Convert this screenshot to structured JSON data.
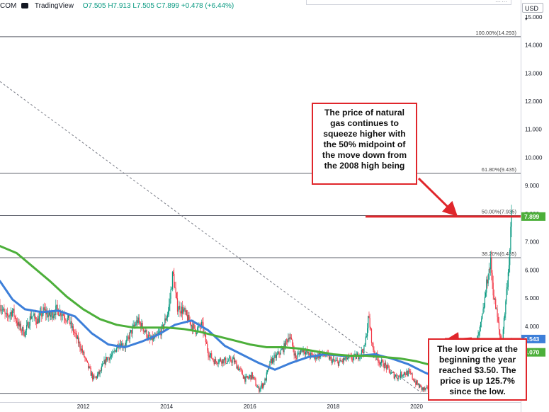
{
  "header": {
    "symbol_fragment": "COM",
    "platform": "TradingView",
    "open": "O7.505",
    "high": "H7.913",
    "low": "L7.505",
    "close": "C7.899",
    "change": "+0.478 (+6.44%)"
  },
  "currency_label": "USD",
  "callouts": {
    "top": "The price of natural gas continues to squeeze higher with the 50% midpoint of the move down from the 2008 high being",
    "bottom": "The low price at the beginning the year reached $3.50. The price is up 125.7% since the low."
  },
  "colors": {
    "candle_up": "#089981",
    "candle_down": "#f23645",
    "ma_blue": "#3d7fd9",
    "ma_green": "#4caf3a",
    "price_badge": "#4caf3a",
    "blue_badge": "#3d7fd9",
    "annotation_red": "#e0262b",
    "fib_line": "#5d606b",
    "trend_dash": "#787b86"
  },
  "chart_data": {
    "type": "candlestick",
    "x_axis": {
      "range": [
        2010.0,
        2022.5
      ],
      "ticks": [
        2012,
        2014,
        2016,
        2018,
        2020
      ],
      "tick_labels": [
        "2012",
        "2014",
        "2016",
        "2018",
        "2020"
      ]
    },
    "y_axis": {
      "range": [
        1.3,
        15.6
      ],
      "ticks": [
        4,
        5,
        6,
        7,
        8,
        9,
        10,
        11,
        12,
        13,
        14,
        15
      ],
      "tick_labels": [
        "4.000",
        "5.000",
        "6.000",
        "7.000",
        "8.000",
        "9.000",
        "10.000",
        "11.000",
        "12.000",
        "13.000",
        "14.000",
        "15.000"
      ]
    },
    "fib_levels": [
      {
        "label": "100.00%(14.293)",
        "value": 14.293
      },
      {
        "label": "61.80%(9.435)",
        "value": 9.435
      },
      {
        "label": "50.00%(7.935)",
        "value": 7.935
      },
      {
        "label": "38.20%(6.435)",
        "value": 6.435
      }
    ],
    "base_line_value": 1.61,
    "price_labels": [
      {
        "label": "7.899",
        "value": 7.899,
        "color": "#4caf3a"
      },
      {
        "label": "3.543",
        "value": 3.543,
        "color": "#3d7fd9"
      },
      {
        "label": "3.070",
        "value": 3.07,
        "color": "#4caf3a"
      }
    ],
    "price_path": [
      [
        2010.0,
        4.75
      ],
      [
        2010.15,
        4.3
      ],
      [
        2010.3,
        4.55
      ],
      [
        2010.45,
        4.0
      ],
      [
        2010.6,
        3.75
      ],
      [
        2010.75,
        4.4
      ],
      [
        2010.9,
        4.2
      ],
      [
        2011.05,
        4.55
      ],
      [
        2011.2,
        4.35
      ],
      [
        2011.35,
        4.6
      ],
      [
        2011.5,
        4.45
      ],
      [
        2011.65,
        4.2
      ],
      [
        2011.8,
        3.7
      ],
      [
        2011.95,
        3.2
      ],
      [
        2012.1,
        2.6
      ],
      [
        2012.25,
        2.1
      ],
      [
        2012.4,
        2.35
      ],
      [
        2012.55,
        2.85
      ],
      [
        2012.7,
        2.95
      ],
      [
        2012.85,
        3.4
      ],
      [
        2013.0,
        3.3
      ],
      [
        2013.15,
        3.8
      ],
      [
        2013.3,
        4.2
      ],
      [
        2013.45,
        3.9
      ],
      [
        2013.6,
        3.5
      ],
      [
        2013.75,
        3.6
      ],
      [
        2013.9,
        3.9
      ],
      [
        2014.05,
        4.6
      ],
      [
        2014.15,
        5.9
      ],
      [
        2014.25,
        4.7
      ],
      [
        2014.4,
        4.55
      ],
      [
        2014.55,
        4.15
      ],
      [
        2014.7,
        3.85
      ],
      [
        2014.85,
        4.05
      ],
      [
        2015.0,
        3.05
      ],
      [
        2015.15,
        2.75
      ],
      [
        2015.3,
        2.8
      ],
      [
        2015.45,
        2.75
      ],
      [
        2015.6,
        2.8
      ],
      [
        2015.75,
        2.45
      ],
      [
        2015.9,
        2.1
      ],
      [
        2016.05,
        2.25
      ],
      [
        2016.2,
        1.75
      ],
      [
        2016.35,
        2.0
      ],
      [
        2016.5,
        2.75
      ],
      [
        2016.65,
        2.95
      ],
      [
        2016.8,
        3.2
      ],
      [
        2016.95,
        3.7
      ],
      [
        2017.1,
        2.85
      ],
      [
        2017.25,
        3.2
      ],
      [
        2017.4,
        3.0
      ],
      [
        2017.55,
        2.9
      ],
      [
        2017.7,
        3.0
      ],
      [
        2017.85,
        2.95
      ],
      [
        2018.0,
        2.75
      ],
      [
        2018.15,
        2.7
      ],
      [
        2018.3,
        2.85
      ],
      [
        2018.45,
        2.85
      ],
      [
        2018.6,
        2.95
      ],
      [
        2018.75,
        3.2
      ],
      [
        2018.85,
        4.35
      ],
      [
        2018.95,
        3.2
      ],
      [
        2019.1,
        2.75
      ],
      [
        2019.25,
        2.6
      ],
      [
        2019.4,
        2.3
      ],
      [
        2019.55,
        2.2
      ],
      [
        2019.7,
        2.35
      ],
      [
        2019.85,
        2.3
      ],
      [
        2020.0,
        1.95
      ],
      [
        2020.15,
        1.75
      ],
      [
        2020.3,
        1.7
      ],
      [
        2020.45,
        1.65
      ],
      [
        2020.6,
        2.4
      ],
      [
        2020.75,
        2.75
      ],
      [
        2020.9,
        2.65
      ],
      [
        2021.05,
        2.65
      ],
      [
        2021.2,
        2.7
      ],
      [
        2021.35,
        3.1
      ],
      [
        2021.5,
        3.7
      ],
      [
        2021.6,
        4.5
      ],
      [
        2021.7,
        5.7
      ],
      [
        2021.78,
        6.25
      ],
      [
        2021.85,
        5.1
      ],
      [
        2021.92,
        4.5
      ],
      [
        2022.0,
        3.65
      ],
      [
        2022.05,
        3.5
      ],
      [
        2022.12,
        4.5
      ],
      [
        2022.18,
        5.6
      ],
      [
        2022.24,
        6.7
      ],
      [
        2022.28,
        7.899
      ]
    ],
    "series": [
      {
        "type": "line",
        "values": [
          [
            2010.0,
            5.6
          ],
          [
            2010.3,
            4.95
          ],
          [
            2010.6,
            4.6
          ],
          [
            2011.0,
            4.5
          ],
          [
            2011.4,
            4.55
          ],
          [
            2011.8,
            4.35
          ],
          [
            2012.2,
            3.75
          ],
          [
            2012.6,
            3.35
          ],
          [
            2013.0,
            3.25
          ],
          [
            2013.4,
            3.45
          ],
          [
            2013.8,
            3.7
          ],
          [
            2014.2,
            4.05
          ],
          [
            2014.6,
            4.2
          ],
          [
            2015.0,
            3.85
          ],
          [
            2015.4,
            3.3
          ],
          [
            2015.8,
            3.0
          ],
          [
            2016.2,
            2.7
          ],
          [
            2016.6,
            2.45
          ],
          [
            2017.0,
            2.7
          ],
          [
            2017.4,
            2.9
          ],
          [
            2017.8,
            3.0
          ],
          [
            2018.2,
            2.95
          ],
          [
            2018.6,
            2.95
          ],
          [
            2019.0,
            3.0
          ],
          [
            2019.4,
            2.85
          ],
          [
            2019.8,
            2.65
          ],
          [
            2020.2,
            2.35
          ],
          [
            2020.6,
            2.1
          ],
          [
            2021.0,
            2.15
          ],
          [
            2021.4,
            2.4
          ],
          [
            2021.8,
            2.85
          ],
          [
            2022.1,
            3.3
          ],
          [
            2022.28,
            3.543
          ]
        ]
      },
      {
        "type": "line",
        "values": [
          [
            2010.0,
            6.85
          ],
          [
            2010.4,
            6.6
          ],
          [
            2010.8,
            6.1
          ],
          [
            2011.2,
            5.6
          ],
          [
            2011.6,
            5.05
          ],
          [
            2012.0,
            4.6
          ],
          [
            2012.4,
            4.25
          ],
          [
            2012.8,
            4.05
          ],
          [
            2013.2,
            3.95
          ],
          [
            2013.6,
            3.95
          ],
          [
            2014.0,
            3.95
          ],
          [
            2014.4,
            3.9
          ],
          [
            2014.8,
            3.8
          ],
          [
            2015.2,
            3.65
          ],
          [
            2015.6,
            3.5
          ],
          [
            2016.0,
            3.35
          ],
          [
            2016.4,
            3.25
          ],
          [
            2016.8,
            3.25
          ],
          [
            2017.2,
            3.2
          ],
          [
            2017.6,
            3.1
          ],
          [
            2018.0,
            3.0
          ],
          [
            2018.4,
            2.95
          ],
          [
            2018.8,
            2.95
          ],
          [
            2019.2,
            2.9
          ],
          [
            2019.6,
            2.85
          ],
          [
            2020.0,
            2.75
          ],
          [
            2020.4,
            2.6
          ],
          [
            2020.8,
            2.55
          ],
          [
            2021.2,
            2.6
          ],
          [
            2021.6,
            2.65
          ],
          [
            2021.9,
            2.75
          ],
          [
            2022.28,
            3.07
          ]
        ]
      }
    ],
    "trendline": [
      [
        2010.0,
        12.7
      ],
      [
        2020.1,
        1.65
      ]
    ]
  }
}
